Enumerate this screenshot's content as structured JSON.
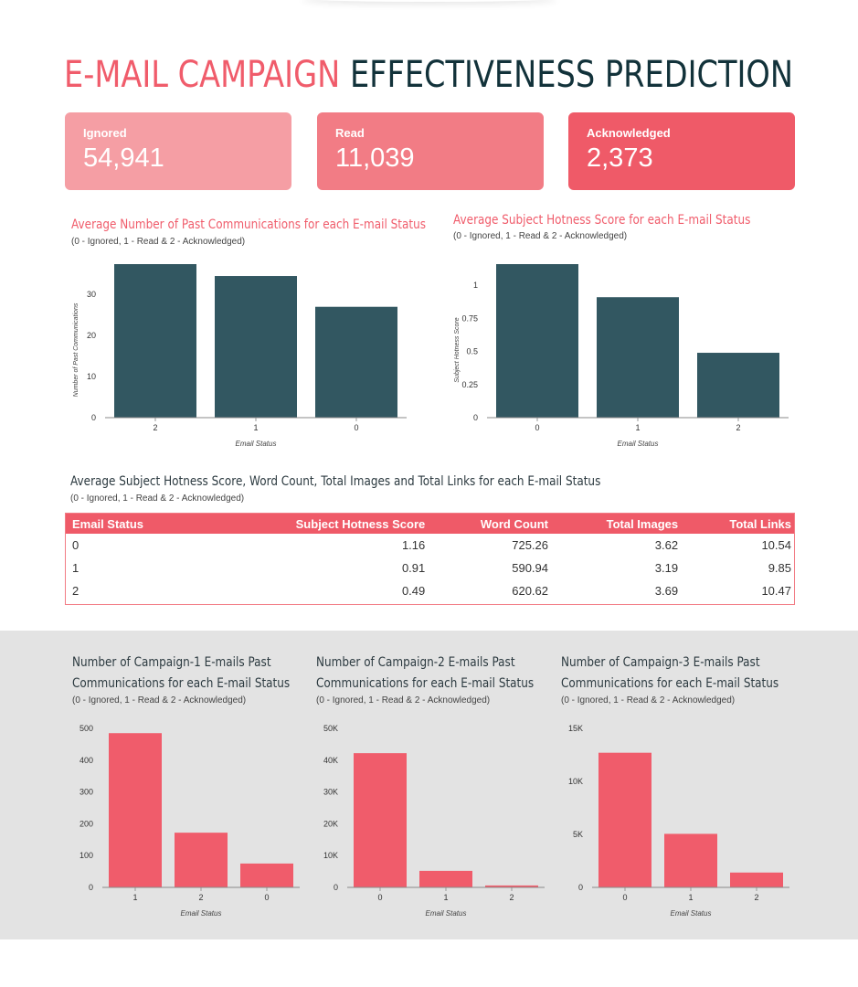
{
  "title": {
    "part1": "E-MAIL CAMPAIGN",
    "part2": "EFFECTIVENESS PREDICTION"
  },
  "kpis": [
    {
      "label": "Ignored",
      "value": "54,941",
      "color": "#f59ea4"
    },
    {
      "label": "Read",
      "value": "11,039",
      "color": "#f27c85"
    },
    {
      "label": "Acknowledged",
      "value": "2,373",
      "color": "#ef5a68"
    }
  ],
  "colors": {
    "dark_bar": "#325761",
    "red_bar": "#f05c6b",
    "accent": "#f05c6b"
  },
  "table": {
    "title": "Average Subject Hotness Score, Word Count, Total Images and Total Links for each E-mail Status",
    "subtitle": "(0 - Ignored, 1 - Read & 2 - Acknowledged)",
    "headers": [
      "Email Status",
      "Subject Hotness Score",
      "Word Count",
      "Total Images",
      "Total Links"
    ],
    "rows": [
      [
        "0",
        "1.16",
        "725.26",
        "3.62",
        "10.54"
      ],
      [
        "1",
        "0.91",
        "590.94",
        "3.19",
        "9.85"
      ],
      [
        "2",
        "0.49",
        "620.62",
        "3.69",
        "10.47"
      ]
    ]
  },
  "chart_data": [
    {
      "id": "past_comm",
      "type": "bar",
      "title": "Average Number of Past Communications for each E-mail Status",
      "subtitle": "(0 - Ignored, 1 - Read & 2 - Acknowledged)",
      "categories": [
        "2",
        "1",
        "0"
      ],
      "values": [
        37.4,
        34.5,
        27
      ],
      "xlabel": "Email Status",
      "ylabel": "Number of Past Communications",
      "ylim": [
        0,
        37.4
      ],
      "yticks": [
        0,
        10,
        20,
        30
      ],
      "ytick_labels": [
        "0",
        "10",
        "20",
        "30"
      ],
      "color": "#325761"
    },
    {
      "id": "hotness",
      "type": "bar",
      "title": "Average Subject Hotness Score for each E-mail Status",
      "subtitle": "(0 - Ignored, 1 - Read & 2 - Acknowledged)",
      "categories": [
        "0",
        "1",
        "2"
      ],
      "values": [
        1.16,
        0.91,
        0.49
      ],
      "xlabel": "Email Status",
      "ylabel": "Subject Hotness Score",
      "ylim": [
        0,
        1.16
      ],
      "yticks": [
        0,
        0.25,
        0.5,
        0.75,
        1
      ],
      "ytick_labels": [
        "0",
        "0.25",
        "0.5",
        "0.75",
        "1"
      ],
      "color": "#325761"
    },
    {
      "id": "camp1",
      "type": "bar",
      "title_lines": [
        "Number of Campaign-1 E-mails Past",
        "Communications for each E-mail Status"
      ],
      "subtitle": "(0 - Ignored, 1 - Read & 2 - Acknowledged)",
      "categories": [
        "1",
        "2",
        "0"
      ],
      "values": [
        485,
        172,
        75
      ],
      "xlabel": "Email Status",
      "ylim": [
        0,
        500
      ],
      "yticks": [
        0,
        100,
        200,
        300,
        400,
        500
      ],
      "ytick_labels": [
        "0",
        "100",
        "200",
        "300",
        "400",
        "500"
      ],
      "color": "#f05c6b"
    },
    {
      "id": "camp2",
      "type": "bar",
      "title_lines": [
        "Number of Campaign-2 E-mails Past",
        "Communications for each E-mail Status"
      ],
      "subtitle": "(0 - Ignored, 1 - Read & 2 - Acknowledged)",
      "categories": [
        "0",
        "1",
        "2"
      ],
      "values": [
        42200,
        5200,
        600
      ],
      "xlabel": "Email Status",
      "ylim": [
        0,
        50000
      ],
      "yticks": [
        0,
        10000,
        20000,
        30000,
        40000,
        50000
      ],
      "ytick_labels": [
        "0",
        "10K",
        "20K",
        "30K",
        "40K",
        "50K"
      ],
      "color": "#f05c6b"
    },
    {
      "id": "camp3",
      "type": "bar",
      "title_lines": [
        "Number of Campaign-3 E-mails Past",
        "Communications for each E-mail Status"
      ],
      "subtitle": "(0 - Ignored, 1 - Read & 2 - Acknowledged)",
      "categories": [
        "0",
        "1",
        "2"
      ],
      "values": [
        12700,
        5050,
        1400
      ],
      "xlabel": "Email Status",
      "ylim": [
        0,
        15000
      ],
      "yticks": [
        0,
        5000,
        10000,
        15000
      ],
      "ytick_labels": [
        "0",
        "5K",
        "10K",
        "15K"
      ],
      "color": "#f05c6b"
    }
  ]
}
